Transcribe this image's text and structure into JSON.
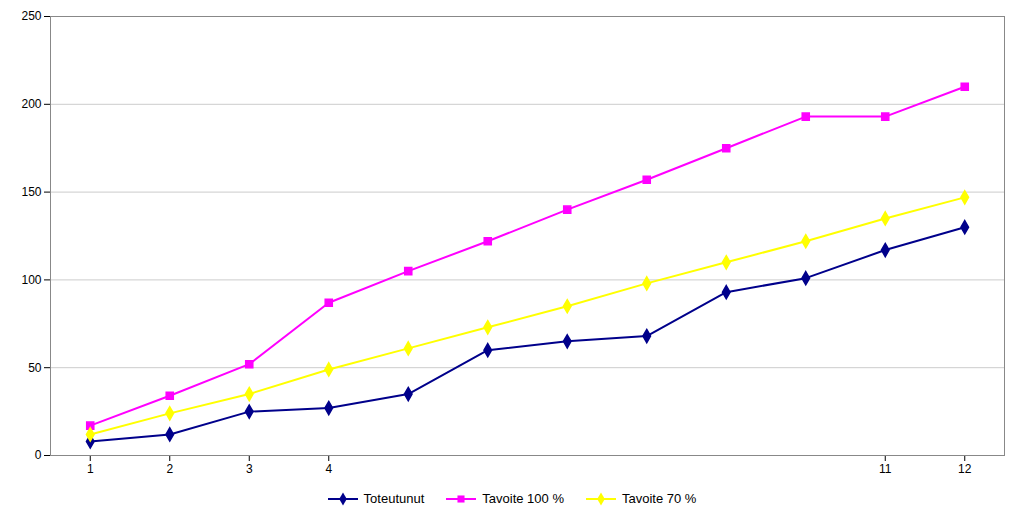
{
  "chart_data": {
    "type": "line",
    "x": [
      1,
      2,
      3,
      4,
      5,
      6,
      7,
      8,
      9,
      10,
      11,
      12
    ],
    "series": [
      {
        "name": "Toteutunut",
        "color": "#00008b",
        "marker": "diamond",
        "values": [
          8,
          12,
          25,
          27,
          35,
          60,
          65,
          68,
          93,
          101,
          117,
          130
        ]
      },
      {
        "name": "Tavoite 100 %",
        "color": "#ff00ff",
        "marker": "square",
        "values": [
          17,
          34,
          52,
          87,
          105,
          122,
          140,
          157,
          175,
          193,
          193,
          210
        ]
      },
      {
        "name": "Tavoite 70 %",
        "color": "#ffff00",
        "marker": "diamond",
        "values": [
          12,
          24,
          35,
          49,
          61,
          73,
          85,
          98,
          110,
          122,
          135,
          147
        ]
      }
    ],
    "xlim": [
      0.5,
      12.5
    ],
    "xticks": [
      1,
      2,
      3,
      4,
      11,
      12
    ],
    "ylim": [
      0,
      250
    ],
    "yticks": [
      0,
      50,
      100,
      150,
      200,
      250
    ],
    "grid": true,
    "legend": "bottom"
  }
}
